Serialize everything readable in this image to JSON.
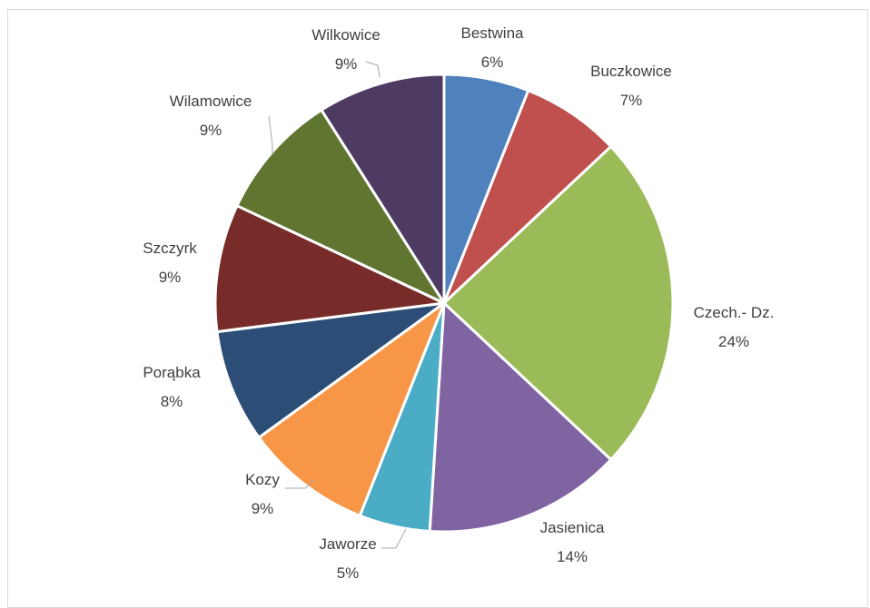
{
  "chart_data": {
    "type": "pie",
    "title": "",
    "legend": "none",
    "slices": [
      {
        "name": "Bestwina",
        "label": "6%",
        "value": 6,
        "color": "#4F81BD"
      },
      {
        "name": "Buczkowice",
        "label": "7%",
        "value": 7,
        "color": "#C0504D"
      },
      {
        "name": "Czech.- Dz.",
        "label": "24%",
        "value": 24,
        "color": "#9BBB59"
      },
      {
        "name": "Jasienica",
        "label": "14%",
        "value": 14,
        "color": "#8064A2"
      },
      {
        "name": "Jaworze",
        "label": "5%",
        "value": 5,
        "color": "#4BACC6"
      },
      {
        "name": "Kozy",
        "label": "9%",
        "value": 9,
        "color": "#F79646"
      },
      {
        "name": "Porąbka",
        "label": "8%",
        "value": 8,
        "color": "#2C4D75"
      },
      {
        "name": "Szczyrk",
        "label": "9%",
        "value": 9,
        "color": "#772C2A"
      },
      {
        "name": "Wilamowice",
        "label": "9%",
        "value": 9,
        "color": "#5F7530"
      },
      {
        "name": "Wilkowice",
        "label": "9%",
        "value": 9,
        "color": "#4D3B62"
      }
    ]
  }
}
